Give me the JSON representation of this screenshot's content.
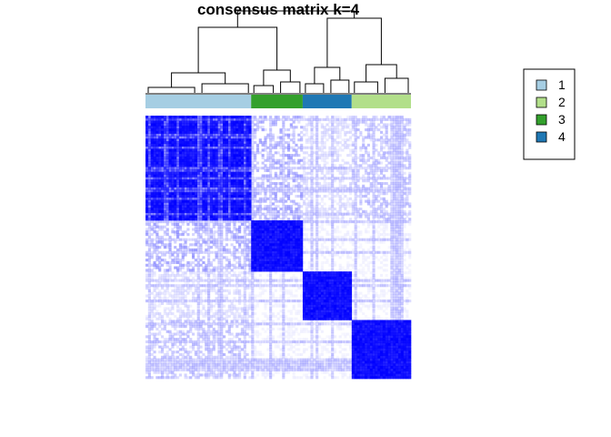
{
  "chart_data": {
    "type": "heatmap",
    "title": "consensus matrix k=4",
    "value_range": [
      0,
      1
    ],
    "color_low": "#ffffff",
    "color_high": "#0000ff",
    "cluster_order": [
      "1",
      "3",
      "4",
      "2"
    ],
    "cluster_sample_counts": [
      41,
      20,
      19,
      23
    ],
    "cluster_colors": {
      "1": "#a6cee3",
      "2": "#b2df8a",
      "3": "#33a02c",
      "4": "#1f78b4"
    },
    "legend": {
      "position": "right",
      "entries": [
        {
          "label": "1",
          "color": "#a6cee3"
        },
        {
          "label": "2",
          "color": "#b2df8a"
        },
        {
          "label": "3",
          "color": "#33a02c"
        },
        {
          "label": "4",
          "color": "#1f78b4"
        }
      ]
    },
    "dendrogram": true
  }
}
